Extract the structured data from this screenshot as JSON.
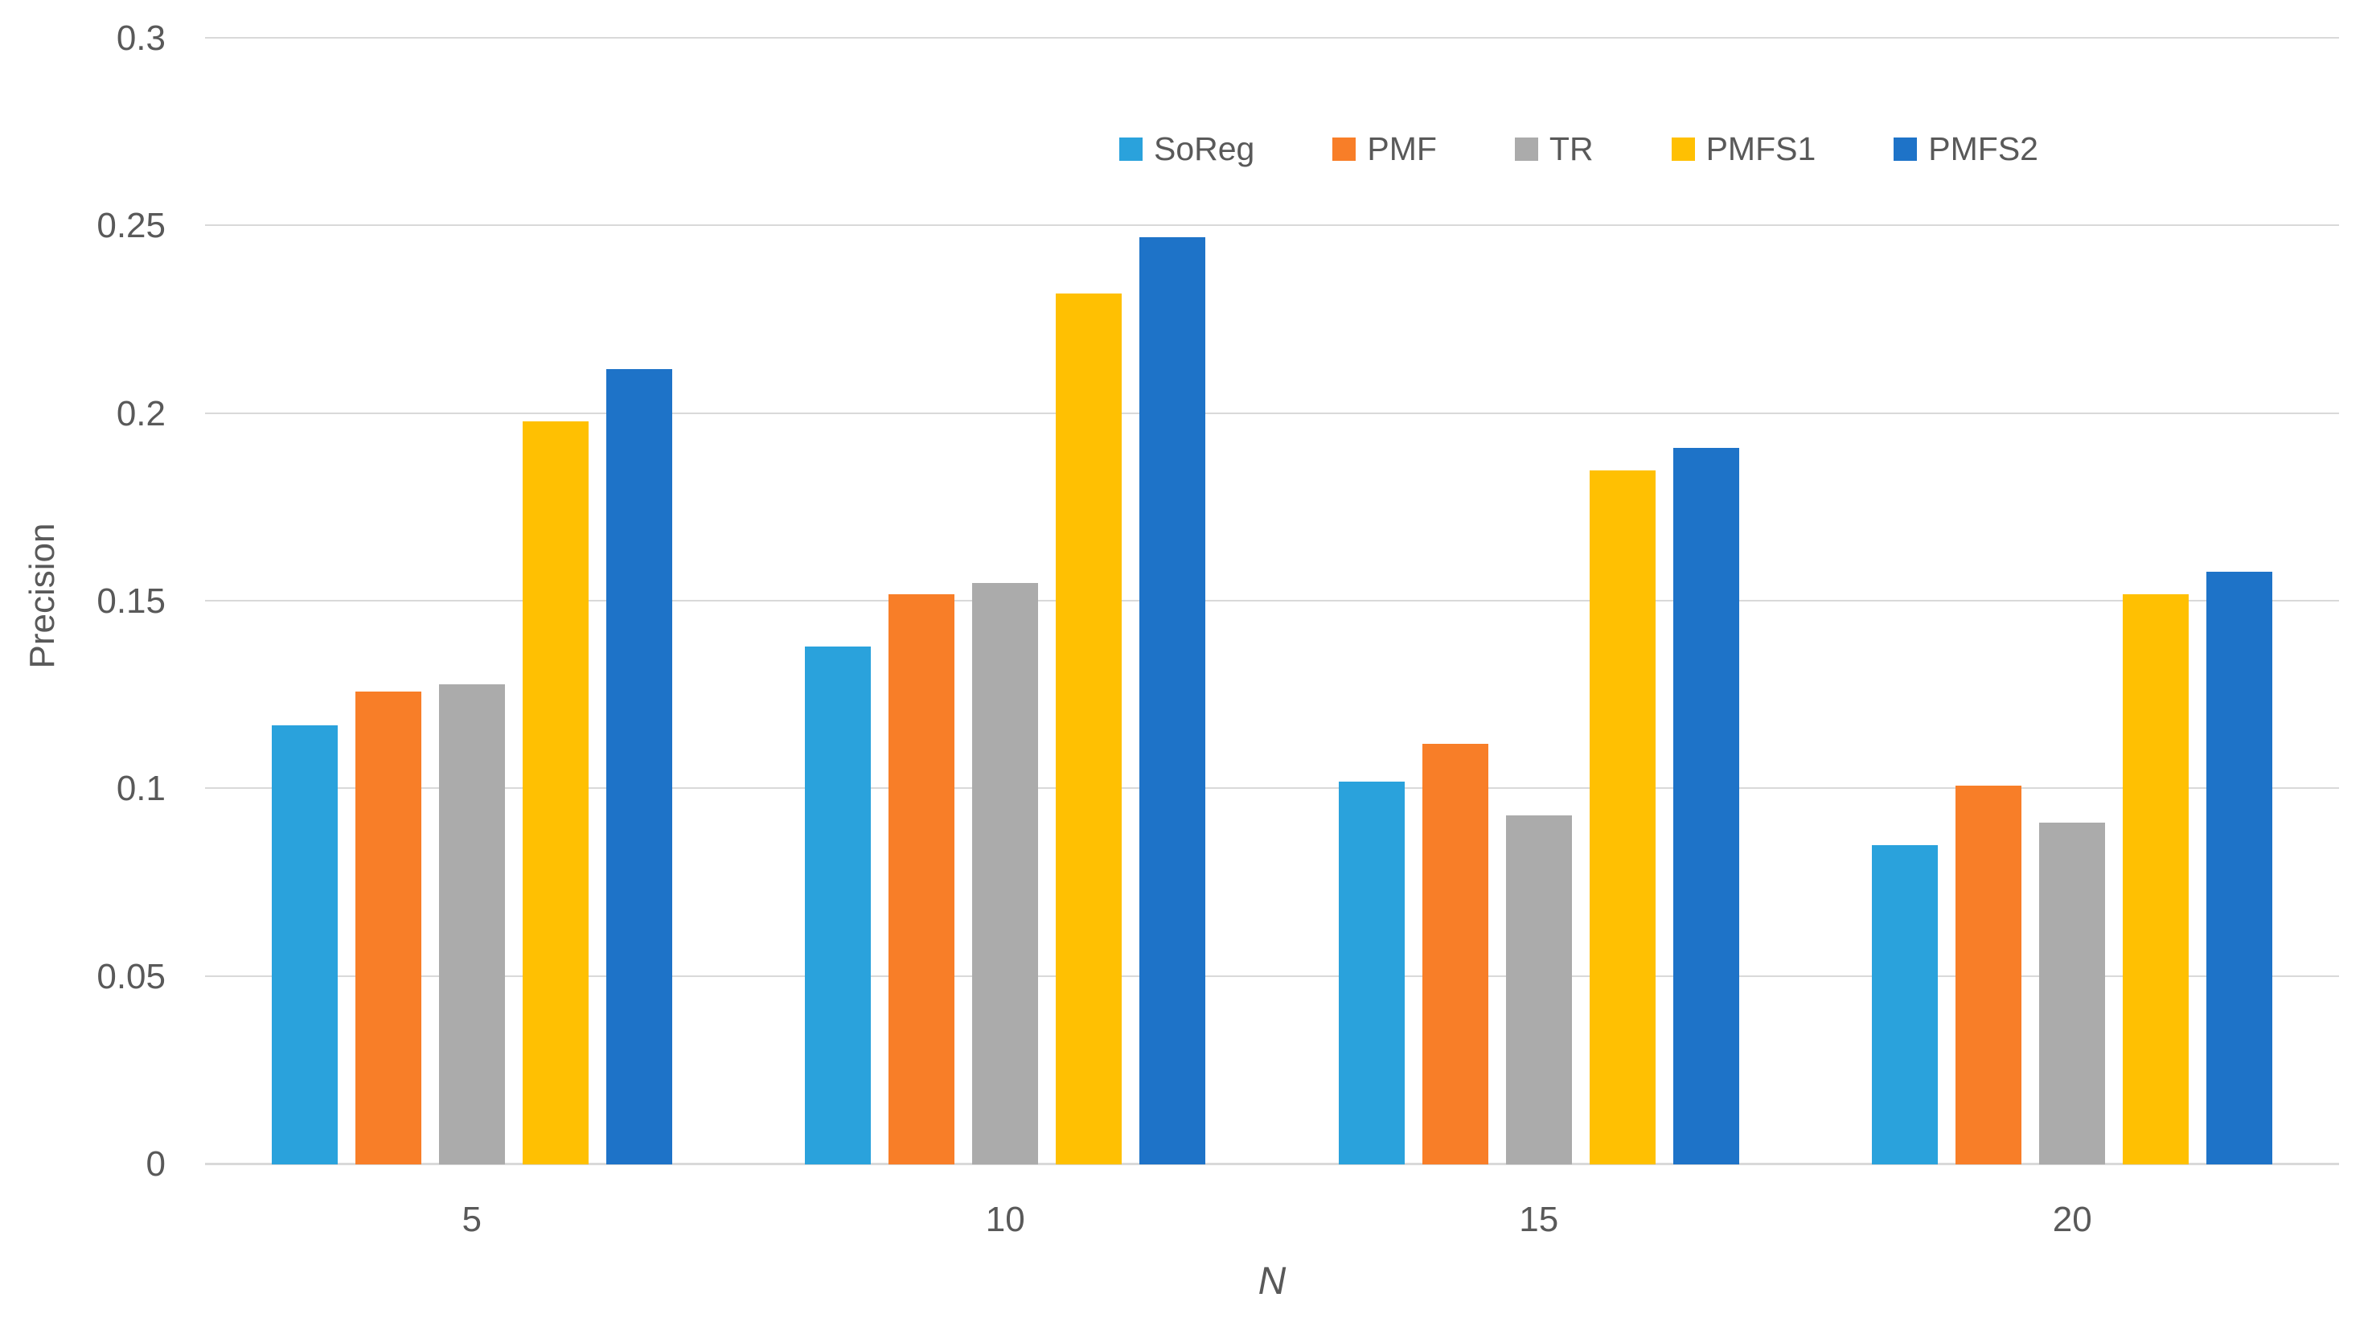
{
  "colors": {
    "background": "#FFFFFF",
    "grid": "#D9D9D9",
    "axis_line": "#D9D9D9",
    "text": "#595959"
  },
  "chart_data": {
    "type": "bar",
    "title": "",
    "xlabel": "N",
    "ylabel": "Precision",
    "categories": [
      "5",
      "10",
      "15",
      "20"
    ],
    "series": [
      {
        "name": "SoReg",
        "color": "#2AA2DC",
        "values": [
          0.117,
          0.138,
          0.102,
          0.085
        ]
      },
      {
        "name": "PMF",
        "color": "#F87E28",
        "values": [
          0.126,
          0.152,
          0.112,
          0.101
        ]
      },
      {
        "name": "TR",
        "color": "#ABABAB",
        "values": [
          0.128,
          0.155,
          0.093,
          0.091
        ]
      },
      {
        "name": "PMFS1",
        "color": "#FFC002",
        "values": [
          0.198,
          0.232,
          0.185,
          0.152
        ]
      },
      {
        "name": "PMFS2",
        "color": "#1E73C8",
        "values": [
          0.212,
          0.247,
          0.191,
          0.158
        ]
      }
    ],
    "ylim": [
      0,
      0.3
    ],
    "yticks": [
      0,
      0.05,
      0.1,
      0.15,
      0.2,
      0.25,
      0.3
    ],
    "ytick_labels": [
      "0",
      "0.05",
      "0.1",
      "0.15",
      "0.2",
      "0.25",
      "0.3"
    ],
    "grid": true,
    "legend_position": "top"
  }
}
